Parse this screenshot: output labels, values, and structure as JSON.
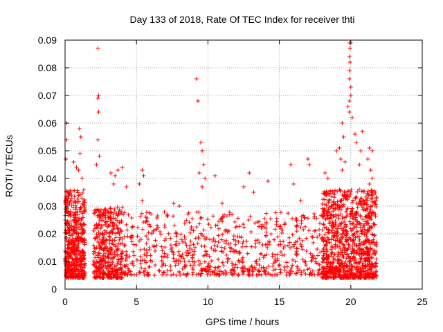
{
  "chart_data": {
    "type": "scatter",
    "title": "Day 133 of 2018, Rate Of TEC Index for receiver thti",
    "xlabel": "GPS time / hours",
    "ylabel": "ROTI / TECUs",
    "xlim": [
      0,
      25
    ],
    "ylim": [
      0,
      0.09
    ],
    "grid": true,
    "marker": "+",
    "color": "#ff0000",
    "xticks": [
      "0",
      "5",
      "10",
      "15",
      "20",
      "25"
    ],
    "yticks": [
      "0",
      "0.01",
      "0.02",
      "0.03",
      "0.04",
      "0.05",
      "0.06",
      "0.07",
      "0.08",
      "0.09"
    ],
    "series": [
      {
        "name": "ROTI",
        "density_profile": [
          {
            "x_range": [
              0.0,
              1.4
            ],
            "y_range": [
              0.004,
              0.036
            ],
            "count": 520
          },
          {
            "x_range": [
              2.0,
              4.0
            ],
            "y_range": [
              0.004,
              0.03
            ],
            "count": 420
          },
          {
            "x_range": [
              4.0,
              18.0
            ],
            "y_range": [
              0.005,
              0.028
            ],
            "count": 700
          },
          {
            "x_range": [
              18.0,
              21.8
            ],
            "y_range": [
              0.004,
              0.036
            ],
            "count": 1000
          }
        ],
        "points": [
          {
            "x": 0.1,
            "y": 0.06
          },
          {
            "x": 0.1,
            "y": 0.054
          },
          {
            "x": 0.05,
            "y": 0.047
          },
          {
            "x": 0.6,
            "y": 0.046
          },
          {
            "x": 0.8,
            "y": 0.044
          },
          {
            "x": 1.0,
            "y": 0.058
          },
          {
            "x": 1.1,
            "y": 0.055
          },
          {
            "x": 1.05,
            "y": 0.049
          },
          {
            "x": 0.95,
            "y": 0.043
          },
          {
            "x": 1.2,
            "y": 0.04
          },
          {
            "x": 2.3,
            "y": 0.087
          },
          {
            "x": 2.35,
            "y": 0.07
          },
          {
            "x": 2.3,
            "y": 0.069
          },
          {
            "x": 2.35,
            "y": 0.064
          },
          {
            "x": 2.3,
            "y": 0.054
          },
          {
            "x": 2.4,
            "y": 0.048
          },
          {
            "x": 2.2,
            "y": 0.045
          },
          {
            "x": 3.2,
            "y": 0.042
          },
          {
            "x": 3.5,
            "y": 0.041
          },
          {
            "x": 3.7,
            "y": 0.043
          },
          {
            "x": 4.0,
            "y": 0.044
          },
          {
            "x": 3.4,
            "y": 0.038
          },
          {
            "x": 4.3,
            "y": 0.037
          },
          {
            "x": 5.4,
            "y": 0.043
          },
          {
            "x": 5.5,
            "y": 0.041
          },
          {
            "x": 5.2,
            "y": 0.038
          },
          {
            "x": 5.4,
            "y": 0.032
          },
          {
            "x": 7.6,
            "y": 0.031
          },
          {
            "x": 8.0,
            "y": 0.03
          },
          {
            "x": 9.2,
            "y": 0.076
          },
          {
            "x": 9.3,
            "y": 0.068
          },
          {
            "x": 9.5,
            "y": 0.053
          },
          {
            "x": 9.6,
            "y": 0.05
          },
          {
            "x": 9.7,
            "y": 0.045
          },
          {
            "x": 9.4,
            "y": 0.042
          },
          {
            "x": 9.8,
            "y": 0.04
          },
          {
            "x": 9.6,
            "y": 0.037
          },
          {
            "x": 10.5,
            "y": 0.041
          },
          {
            "x": 11.0,
            "y": 0.031
          },
          {
            "x": 12.5,
            "y": 0.037
          },
          {
            "x": 12.9,
            "y": 0.042
          },
          {
            "x": 13.2,
            "y": 0.035
          },
          {
            "x": 14.2,
            "y": 0.039
          },
          {
            "x": 15.8,
            "y": 0.045
          },
          {
            "x": 16.0,
            "y": 0.038
          },
          {
            "x": 17.0,
            "y": 0.047
          },
          {
            "x": 17.1,
            "y": 0.045
          },
          {
            "x": 16.5,
            "y": 0.032
          },
          {
            "x": 18.4,
            "y": 0.04
          },
          {
            "x": 18.2,
            "y": 0.042
          },
          {
            "x": 19.0,
            "y": 0.05
          },
          {
            "x": 19.2,
            "y": 0.051
          },
          {
            "x": 19.4,
            "y": 0.06
          },
          {
            "x": 19.5,
            "y": 0.055
          },
          {
            "x": 19.3,
            "y": 0.047
          },
          {
            "x": 19.6,
            "y": 0.046
          },
          {
            "x": 19.4,
            "y": 0.043
          },
          {
            "x": 19.8,
            "y": 0.066
          },
          {
            "x": 19.9,
            "y": 0.064
          },
          {
            "x": 19.9,
            "y": 0.068
          },
          {
            "x": 20.0,
            "y": 0.07
          },
          {
            "x": 19.9,
            "y": 0.079
          },
          {
            "x": 19.95,
            "y": 0.082
          },
          {
            "x": 19.9,
            "y": 0.084
          },
          {
            "x": 19.95,
            "y": 0.087
          },
          {
            "x": 19.9,
            "y": 0.089
          },
          {
            "x": 20.0,
            "y": 0.089
          },
          {
            "x": 19.9,
            "y": 0.076
          },
          {
            "x": 20.0,
            "y": 0.073
          },
          {
            "x": 20.1,
            "y": 0.062
          },
          {
            "x": 20.3,
            "y": 0.056
          },
          {
            "x": 20.4,
            "y": 0.053
          },
          {
            "x": 20.8,
            "y": 0.057
          },
          {
            "x": 20.7,
            "y": 0.05
          },
          {
            "x": 20.6,
            "y": 0.045
          },
          {
            "x": 21.3,
            "y": 0.051
          },
          {
            "x": 21.5,
            "y": 0.05
          },
          {
            "x": 21.2,
            "y": 0.047
          },
          {
            "x": 21.4,
            "y": 0.043
          },
          {
            "x": 21.5,
            "y": 0.04
          },
          {
            "x": 21.3,
            "y": 0.038
          }
        ]
      }
    ]
  }
}
